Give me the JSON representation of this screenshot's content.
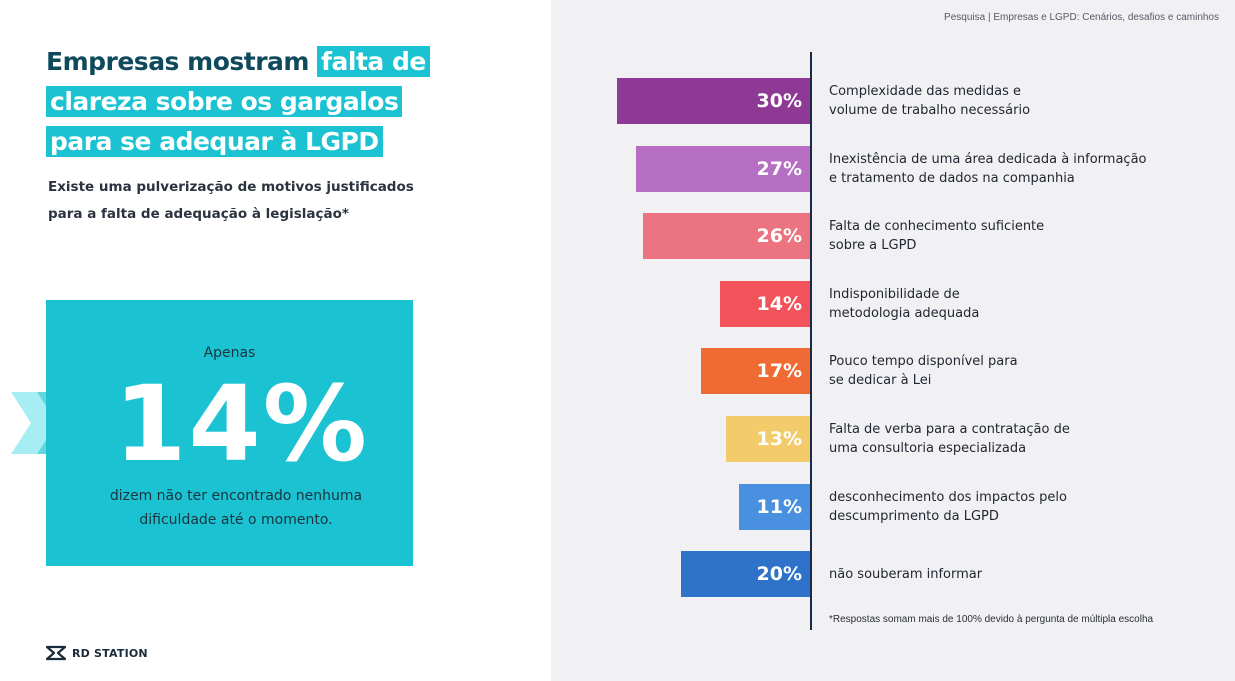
{
  "header": {
    "breadcrumb": "Pesquisa  |  Empresas e LGPD: Cenários, desafios e caminhos"
  },
  "headline": {
    "part1": "Empresas mostram ",
    "part2": "falta de clareza sobre os gargalos para se adequar à LGPD"
  },
  "subtitle": "Existe uma pulverização de motivos justificados para a falta de adequação à legislação*",
  "stat": {
    "pre": "Apenas",
    "value": "14%",
    "post": "dizem não ter encontrado nenhuma dificuldade até o momento."
  },
  "logo": {
    "text": "RD STATION"
  },
  "footnote": "*Respostas somam mais de 100% devido à pergunta de múltipla escolha",
  "colors": {
    "teal": "#1bc3d2",
    "navy": "#0e4a5c"
  },
  "chart_data": {
    "type": "bar",
    "orientation": "horizontal",
    "unit": "%",
    "categories": [
      "Complexidade das medidas e volume de trabalho necessário",
      "Inexistência de uma área dedicada à informação e tratamento de dados na companhia",
      "Falta de conhecimento suficiente sobre a LGPD",
      "Indisponibilidade de metodologia adequada",
      "Pouco tempo disponível para se dedicar à Lei",
      "Falta de verba para a contratação de uma consultoria especializada",
      "desconhecimento dos impactos pelo descumprimento da LGPD",
      "não souberam informar"
    ],
    "label_lines": [
      [
        "Complexidade das medidas e",
        "volume de trabalho necessário"
      ],
      [
        "Inexistência de uma área dedicada à informação",
        "e tratamento de dados na companhia"
      ],
      [
        "Falta de conhecimento suficiente",
        "sobre a LGPD"
      ],
      [
        "Indisponibilidade de",
        "metodologia adequada"
      ],
      [
        "Pouco tempo disponível para",
        "se dedicar à Lei"
      ],
      [
        "Falta de verba para a contratação de",
        "uma consultoria especializada"
      ],
      [
        "desconhecimento dos impactos pelo",
        "descumprimento da LGPD"
      ],
      [
        "não souberam informar"
      ]
    ],
    "values": [
      30,
      27,
      26,
      14,
      17,
      13,
      11,
      20
    ],
    "value_labels": [
      "30%",
      "27%",
      "26%",
      "14%",
      "17%",
      "13%",
      "11%",
      "20%"
    ],
    "colors": [
      "#8e3a94",
      "#b76fc3",
      "#ec7480",
      "#f2525a",
      "#ef6b33",
      "#f4cb6a",
      "#4a90e0",
      "#2f72c9"
    ],
    "xlim": [
      0,
      30
    ]
  }
}
